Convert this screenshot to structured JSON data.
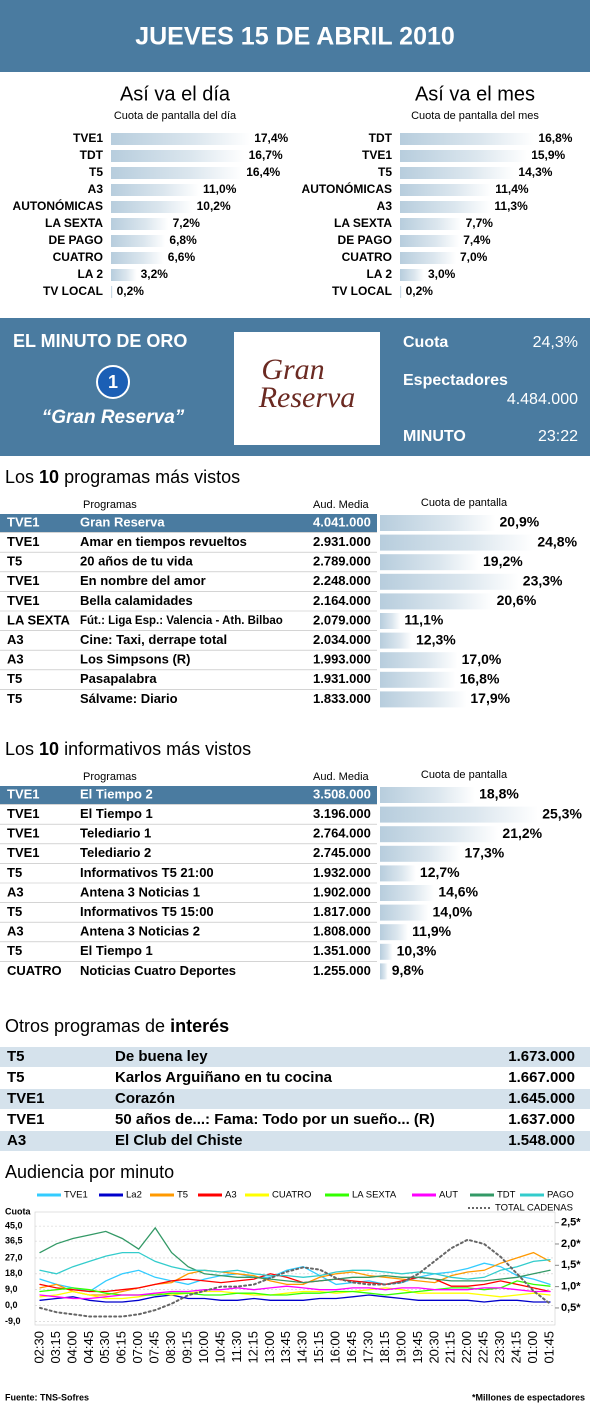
{
  "header": {
    "title": "JUEVES 15 DE ABRIL 2010"
  },
  "chart_data": [
    {
      "type": "bar",
      "title": "Así va el día",
      "subtitle": "Cuota de pantalla del día",
      "categories": [
        "TVE1",
        "TDT",
        "T5",
        "A3",
        "AUTONÓMICAS",
        "LA SEXTA",
        "DE PAGO",
        "CUATRO",
        "LA 2",
        "TV LOCAL"
      ],
      "values": [
        17.4,
        16.7,
        16.4,
        11.0,
        10.2,
        7.2,
        6.8,
        6.6,
        3.2,
        0.2
      ],
      "value_labels": [
        "17,4%",
        "16,7%",
        "16,4%",
        "11,0%",
        "10,2%",
        "7,2%",
        "6,8%",
        "6,6%",
        "3,2%",
        "0,2%"
      ],
      "xlim": [
        0,
        20
      ]
    },
    {
      "type": "bar",
      "title": "Así va el mes",
      "subtitle": "Cuota de pantalla del mes",
      "categories": [
        "TDT",
        "TVE1",
        "T5",
        "AUTONÓMICAS",
        "A3",
        "LA SEXTA",
        "DE PAGO",
        "CUATRO",
        "LA 2",
        "TV LOCAL"
      ],
      "values": [
        16.8,
        15.9,
        14.3,
        11.4,
        11.3,
        7.7,
        7.4,
        7.0,
        3.0,
        0.2
      ],
      "value_labels": [
        "16,8%",
        "15,9%",
        "14,3%",
        "11,4%",
        "11,3%",
        "7,7%",
        "7,4%",
        "7,0%",
        "3,0%",
        "0,2%"
      ],
      "xlim": [
        0,
        20
      ]
    },
    {
      "type": "line",
      "title": "Audiencia por minuto",
      "y_label": "Cuota",
      "x": [
        "02:30",
        "03:15",
        "04:00",
        "04:45",
        "05:30",
        "06:15",
        "07:00",
        "07:45",
        "08:30",
        "09:15",
        "10:00",
        "10:45",
        "11:30",
        "12:15",
        "13:00",
        "13:45",
        "14:30",
        "15:15",
        "16:00",
        "16:45",
        "17:30",
        "18:15",
        "19:00",
        "19:45",
        "20:30",
        "21:15",
        "22:00",
        "22:45",
        "23:30",
        "24:15",
        "01:00",
        "01:45"
      ],
      "series": [
        {
          "name": "TVE1",
          "color": "#33ccff",
          "values": [
            15,
            12,
            10,
            8,
            14,
            18,
            20,
            16,
            14,
            12,
            15,
            17,
            18,
            16,
            16,
            20,
            22,
            17,
            12,
            13,
            14,
            12,
            13,
            16,
            18,
            19,
            21,
            24,
            22,
            17,
            15,
            12
          ]
        },
        {
          "name": "La2",
          "color": "#0000cc",
          "values": [
            3,
            4,
            5,
            3,
            2,
            2,
            3,
            5,
            6,
            4,
            4,
            3,
            3,
            4,
            3,
            3,
            3,
            4,
            4,
            5,
            6,
            5,
            4,
            3,
            3,
            3,
            3,
            2,
            3,
            3,
            2,
            2
          ]
        },
        {
          "name": "T5",
          "color": "#ff9900",
          "values": [
            10,
            12,
            8,
            6,
            6,
            8,
            10,
            12,
            13,
            18,
            20,
            19,
            18,
            17,
            14,
            12,
            12,
            16,
            18,
            19,
            17,
            16,
            15,
            14,
            13,
            17,
            19,
            20,
            24,
            27,
            30,
            25
          ]
        },
        {
          "name": "A3",
          "color": "#ff0000",
          "values": [
            12,
            10,
            9,
            8,
            8,
            9,
            10,
            12,
            14,
            15,
            14,
            13,
            14,
            15,
            18,
            16,
            13,
            14,
            15,
            14,
            13,
            12,
            14,
            16,
            15,
            11,
            11,
            12,
            14,
            12,
            10,
            8
          ]
        },
        {
          "name": "CUATRO",
          "color": "#ffff00",
          "values": [
            5,
            6,
            8,
            6,
            4,
            4,
            5,
            7,
            6,
            7,
            8,
            8,
            7,
            6,
            6,
            7,
            8,
            8,
            7,
            8,
            9,
            10,
            9,
            7,
            7,
            7,
            7,
            6,
            5,
            6,
            7,
            6
          ]
        },
        {
          "name": "LA SEXTA",
          "color": "#33ff00",
          "values": [
            8,
            9,
            10,
            9,
            7,
            6,
            6,
            6,
            7,
            7,
            6,
            6,
            7,
            7,
            6,
            6,
            7,
            7,
            8,
            8,
            7,
            6,
            7,
            8,
            9,
            10,
            10,
            9,
            10,
            14,
            12,
            11
          ]
        },
        {
          "name": "AUT",
          "color": "#ff00ff",
          "values": [
            6,
            5,
            4,
            4,
            5,
            6,
            6,
            7,
            8,
            8,
            9,
            9,
            10,
            9,
            10,
            11,
            10,
            9,
            9,
            10,
            10,
            9,
            10,
            10,
            9,
            9,
            9,
            10,
            10,
            9,
            8,
            8
          ]
        },
        {
          "name": "TDT",
          "color": "#339966",
          "values": [
            30,
            35,
            38,
            40,
            42,
            38,
            32,
            44,
            30,
            22,
            18,
            17,
            16,
            16,
            15,
            14,
            13,
            14,
            15,
            16,
            16,
            17,
            16,
            16,
            15,
            14,
            14,
            14,
            15,
            16,
            18,
            20
          ]
        },
        {
          "name": "PAGO",
          "color": "#33cccc",
          "values": [
            20,
            18,
            22,
            25,
            28,
            30,
            30,
            25,
            22,
            20,
            20,
            19,
            20,
            18,
            17,
            17,
            16,
            17,
            19,
            20,
            20,
            19,
            18,
            19,
            18,
            16,
            15,
            16,
            20,
            22,
            25,
            26
          ]
        },
        {
          "name": "TOTAL CADENAS",
          "color": "#666666",
          "axis": "y2",
          "values": [
            0.5,
            0.4,
            0.35,
            0.3,
            0.3,
            0.3,
            0.35,
            0.45,
            0.6,
            0.8,
            0.9,
            1.0,
            1.0,
            1.05,
            1.2,
            1.35,
            1.45,
            1.4,
            1.2,
            1.1,
            1.05,
            1.05,
            1.1,
            1.3,
            1.6,
            1.9,
            2.1,
            2.0,
            1.7,
            1.3,
            0.9,
            0.6
          ]
        }
      ],
      "ylim": [
        -11,
        53
      ],
      "yticks": [
        {
          "value": 45,
          "label": "45,0"
        },
        {
          "value": 36.5,
          "label": "36,5"
        },
        {
          "value": 27,
          "label": "27,0"
        },
        {
          "value": 18,
          "label": "18,0"
        },
        {
          "value": 9,
          "label": "9,0"
        },
        {
          "value": 0,
          "label": "0,0"
        },
        {
          "value": -9,
          "label": "-9,0"
        }
      ],
      "y2lim": [
        0.1,
        2.75
      ],
      "y2ticks": [
        {
          "value": 2.5,
          "label": "2,5*"
        },
        {
          "value": 2.0,
          "label": "2,0*"
        },
        {
          "value": 1.5,
          "label": "1,5*"
        },
        {
          "value": 1.0,
          "label": "1,0*"
        },
        {
          "value": 0.5,
          "label": "0,5*"
        }
      ],
      "grid": true
    }
  ],
  "minuto_de_oro": {
    "title": "EL MINUTO DE ORO",
    "channel_logo": "1",
    "program_label": "“Gran Reserva”",
    "image_text": [
      "Gran",
      "Reserva"
    ],
    "stats": [
      {
        "label": "Cuota",
        "value": "24,3%"
      },
      {
        "label": "Espectadores",
        "value": "4.484.000"
      },
      {
        "label": "MINUTO",
        "value": "23:22"
      }
    ]
  },
  "top_programs": {
    "title": [
      "Los ",
      "10",
      " programas más vistos"
    ],
    "headers": [
      "Programas",
      "Aud. Media",
      "Cuota de pantalla"
    ],
    "xlim": [
      9,
      26
    ],
    "rows": [
      {
        "channel": "TVE1",
        "program": "Gran Reserva",
        "audience": "4.041.000",
        "share": 20.9,
        "share_label": "20,9%"
      },
      {
        "channel": "TVE1",
        "program": "Amar en tiempos revueltos",
        "audience": "2.931.000",
        "share": 24.8,
        "share_label": "24,8%"
      },
      {
        "channel": "T5",
        "program": "20 años de tu vida",
        "audience": "2.789.000",
        "share": 19.2,
        "share_label": "19,2%"
      },
      {
        "channel": "TVE1",
        "program": "En nombre del amor",
        "audience": "2.248.000",
        "share": 23.3,
        "share_label": "23,3%"
      },
      {
        "channel": "TVE1",
        "program": "Bella calamidades",
        "audience": "2.164.000",
        "share": 20.6,
        "share_label": "20,6%"
      },
      {
        "channel": "LA SEXTA",
        "program": "Fút.: Liga Esp.: Valencia - Ath. Bilbao",
        "audience": "2.079.000",
        "share": 11.1,
        "share_label": "11,1%"
      },
      {
        "channel": "A3",
        "program": "Cine: Taxi, derrape total",
        "audience": "2.034.000",
        "share": 12.3,
        "share_label": "12,3%"
      },
      {
        "channel": "A3",
        "program": "Los Simpsons (R)",
        "audience": "1.993.000",
        "share": 17.0,
        "share_label": "17,0%"
      },
      {
        "channel": "T5",
        "program": "Pasapalabra",
        "audience": "1.931.000",
        "share": 16.8,
        "share_label": "16,8%"
      },
      {
        "channel": "T5",
        "program": "Sálvame: Diario",
        "audience": "1.833.000",
        "share": 17.9,
        "share_label": "17,9%"
      }
    ]
  },
  "top_news": {
    "title": [
      "Los ",
      "10",
      " informativos más vistos"
    ],
    "headers": [
      "Programas",
      "Aud. Media",
      "Cuota de pantalla"
    ],
    "xlim": [
      9,
      26
    ],
    "rows": [
      {
        "channel": "TVE1",
        "program": "El Tiempo 2",
        "audience": "3.508.000",
        "share": 18.8,
        "share_label": "18,8%"
      },
      {
        "channel": "TVE1",
        "program": "El Tiempo 1",
        "audience": "3.196.000",
        "share": 25.3,
        "share_label": "25,3%"
      },
      {
        "channel": "TVE1",
        "program": "Telediario 1",
        "audience": "2.764.000",
        "share": 21.2,
        "share_label": "21,2%"
      },
      {
        "channel": "TVE1",
        "program": "Telediario 2",
        "audience": "2.745.000",
        "share": 17.3,
        "share_label": "17,3%"
      },
      {
        "channel": "T5",
        "program": "Informativos T5 21:00",
        "audience": "1.932.000",
        "share": 12.7,
        "share_label": "12,7%"
      },
      {
        "channel": "A3",
        "program": "Antena 3 Noticias 1",
        "audience": "1.902.000",
        "share": 14.6,
        "share_label": "14,6%"
      },
      {
        "channel": "T5",
        "program": "Informativos T5 15:00",
        "audience": "1.817.000",
        "share": 14.0,
        "share_label": "14,0%"
      },
      {
        "channel": "A3",
        "program": "Antena 3 Noticias 2",
        "audience": "1.808.000",
        "share": 11.9,
        "share_label": "11,9%"
      },
      {
        "channel": "T5",
        "program": "El Tiempo 1",
        "audience": "1.351.000",
        "share": 10.3,
        "share_label": "10,3%"
      },
      {
        "channel": "CUATRO",
        "program": "Noticias Cuatro Deportes",
        "audience": "1.255.000",
        "share": 9.8,
        "share_label": "9,8%"
      }
    ]
  },
  "other_programs": {
    "title": [
      "Otros programas de ",
      "interés"
    ],
    "rows": [
      {
        "channel": "T5",
        "program": "De buena ley",
        "audience": "1.673.000"
      },
      {
        "channel": "T5",
        "program": "Karlos Arguiñano en tu cocina",
        "audience": "1.667.000"
      },
      {
        "channel": "TVE1",
        "program": "Corazón",
        "audience": "1.645.000"
      },
      {
        "channel": "TVE1",
        "program": "50 años de...: Fama: Todo por un sueño... (R)",
        "audience": "1.637.000"
      },
      {
        "channel": "A3",
        "program": "El Club del Chiste",
        "audience": "1.548.000"
      }
    ]
  },
  "footer": {
    "source": "Fuente: TNS-Sofres",
    "note": "*Millones de espectadores"
  }
}
